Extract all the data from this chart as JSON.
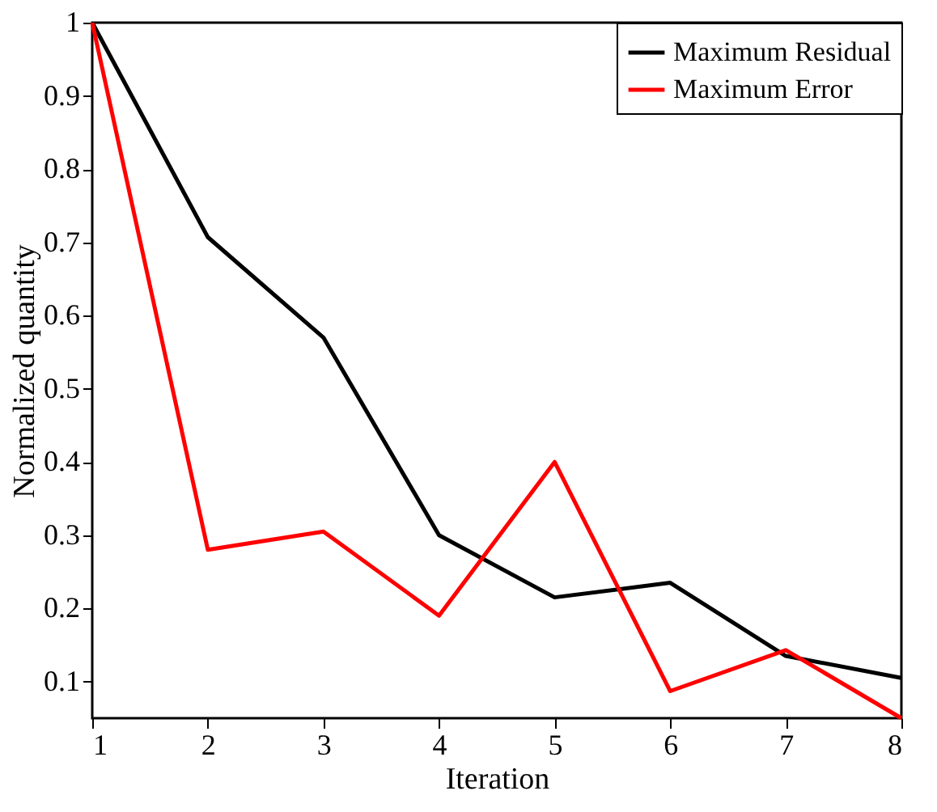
{
  "chart_data": {
    "type": "line",
    "xlabel": "Iteration",
    "ylabel": "Normalized quantity",
    "x": [
      1,
      2,
      3,
      4,
      5,
      6,
      7,
      8
    ],
    "series": [
      {
        "name": "Maximum Residual",
        "color": "#000000",
        "values": [
          1,
          0.707,
          0.57,
          0.3,
          0.215,
          0.235,
          0.135,
          0.105
        ]
      },
      {
        "name": "Maximum Error",
        "color": "#ff0000",
        "values": [
          1,
          0.28,
          0.305,
          0.19,
          0.4,
          0.087,
          0.143,
          0.05
        ]
      }
    ],
    "xlim": [
      1,
      8
    ],
    "xticks": [
      1,
      2,
      3,
      4,
      5,
      6,
      7,
      8
    ],
    "ylim": [
      0.05,
      1
    ],
    "yticks": [
      0.1,
      0.2,
      0.3,
      0.4,
      0.5,
      0.6,
      0.7,
      0.8,
      0.9,
      1
    ],
    "grid": false,
    "legend": "top right",
    "marker": "none",
    "line_style": "solid"
  }
}
